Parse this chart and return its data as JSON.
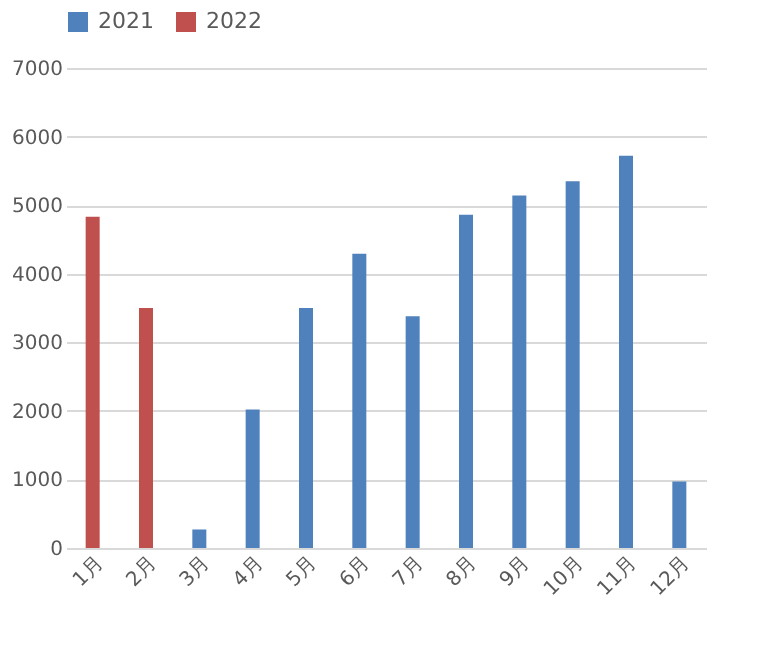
{
  "chart_data": {
    "type": "bar",
    "categories": [
      "1月",
      "2月",
      "3月",
      "4月",
      "5月",
      "6月",
      "7月",
      "8月",
      "9月",
      "10月",
      "11月",
      "12月"
    ],
    "series": [
      {
        "name": "2021",
        "color": "#4f81bd",
        "values": [
          null,
          null,
          270,
          2020,
          3500,
          4290,
          3380,
          4860,
          5140,
          5350,
          5720,
          970
        ]
      },
      {
        "name": "2022",
        "color": "#c0504d",
        "values": [
          4830,
          3500,
          null,
          null,
          null,
          null,
          null,
          null,
          null,
          null,
          null,
          null
        ]
      }
    ],
    "ylim": [
      0,
      7000
    ],
    "yticks": [
      0,
      1000,
      2000,
      3000,
      4000,
      5000,
      6000,
      7000
    ],
    "grid": "y",
    "legend": "top"
  }
}
